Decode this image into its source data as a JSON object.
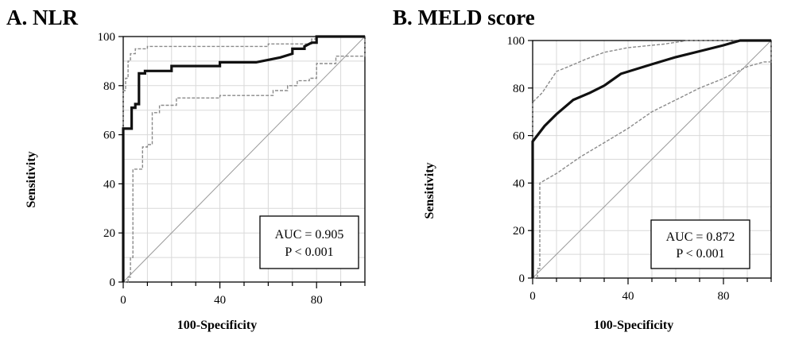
{
  "figure": {
    "background": "#ffffff",
    "colors": {
      "roc_curve": "#111111",
      "confidence_band": "#8a8a8a",
      "reference_line": "#9a9a9a",
      "grid": "#d9d9d9",
      "frame": "#000000"
    }
  },
  "chart_data": [
    {
      "type": "line",
      "panel_title": "A.   NLR",
      "xlabel": "100-Specificity",
      "ylabel": "Sensitivity",
      "xlim": [
        0,
        100
      ],
      "ylim": [
        0,
        100
      ],
      "xticks": [
        0,
        40,
        80
      ],
      "yticks": [
        0,
        20,
        40,
        60,
        80,
        100
      ],
      "grid": true,
      "annotation": {
        "lines": [
          "AUC = 0.905",
          "P < 0.001"
        ],
        "placement": "bottom-right"
      },
      "series": [
        {
          "role": "roc",
          "style": "solid-thick",
          "type": "step",
          "points": [
            [
              0,
              0
            ],
            [
              0,
              62.5
            ],
            [
              3.5,
              62.5
            ],
            [
              3.5,
              71
            ],
            [
              5,
              71
            ],
            [
              5,
              72.5
            ],
            [
              6.5,
              72.5
            ],
            [
              6.5,
              85
            ],
            [
              9,
              85
            ],
            [
              9,
              86
            ],
            [
              20,
              86
            ],
            [
              20,
              88
            ],
            [
              40,
              88
            ],
            [
              40,
              89.5
            ],
            [
              55,
              89.5
            ],
            [
              65,
              91.5
            ],
            [
              70,
              93
            ],
            [
              70,
              95
            ],
            [
              75,
              95
            ],
            [
              75,
              96
            ],
            [
              78,
              97.5
            ],
            [
              80,
              97.5
            ],
            [
              80,
              100
            ],
            [
              100,
              100
            ]
          ]
        },
        {
          "role": "upper_ci",
          "style": "dashed-gray",
          "type": "step",
          "points": [
            [
              0,
              0
            ],
            [
              0,
              78
            ],
            [
              1,
              78
            ],
            [
              1,
              83
            ],
            [
              2,
              83
            ],
            [
              2,
              90
            ],
            [
              3,
              90
            ],
            [
              3,
              93
            ],
            [
              5,
              93
            ],
            [
              5,
              95
            ],
            [
              10,
              95
            ],
            [
              10,
              96
            ],
            [
              60,
              96
            ],
            [
              60,
              97
            ],
            [
              78,
              97
            ],
            [
              78,
              99
            ],
            [
              80,
              99
            ],
            [
              80,
              100
            ],
            [
              100,
              100
            ]
          ]
        },
        {
          "role": "lower_ci",
          "style": "dashed-gray",
          "type": "step",
          "points": [
            [
              0,
              0
            ],
            [
              2,
              0
            ],
            [
              2,
              2
            ],
            [
              3,
              2
            ],
            [
              3,
              10
            ],
            [
              4,
              10
            ],
            [
              4,
              46
            ],
            [
              8,
              46
            ],
            [
              8,
              55
            ],
            [
              10,
              55
            ],
            [
              10,
              56
            ],
            [
              12,
              56
            ],
            [
              12,
              69
            ],
            [
              15,
              69
            ],
            [
              15,
              72
            ],
            [
              22,
              72
            ],
            [
              22,
              75
            ],
            [
              40,
              75
            ],
            [
              40,
              76
            ],
            [
              62,
              76
            ],
            [
              62,
              78
            ],
            [
              68,
              78
            ],
            [
              68,
              80
            ],
            [
              72,
              80
            ],
            [
              72,
              82
            ],
            [
              77,
              82
            ],
            [
              77,
              83
            ],
            [
              80,
              83
            ],
            [
              80,
              89
            ],
            [
              88,
              89
            ],
            [
              88,
              92
            ],
            [
              100,
              92
            ],
            [
              100,
              100
            ]
          ]
        },
        {
          "role": "reference",
          "style": "thin-gray",
          "type": "line",
          "points": [
            [
              0,
              0
            ],
            [
              100,
              100
            ]
          ]
        }
      ]
    },
    {
      "type": "line",
      "panel_title": "B. MELD score",
      "xlabel": "100-Specificity",
      "ylabel": "Sensitivity",
      "xlim": [
        0,
        100
      ],
      "ylim": [
        0,
        100
      ],
      "xticks": [
        0,
        40,
        80
      ],
      "yticks": [
        0,
        20,
        40,
        60,
        80,
        100
      ],
      "grid": true,
      "annotation": {
        "lines": [
          "AUC = 0.872",
          "P < 0.001"
        ],
        "placement": "bottom-right"
      },
      "series": [
        {
          "role": "roc",
          "style": "solid-thick",
          "type": "line",
          "points": [
            [
              0,
              0
            ],
            [
              0,
              57.5
            ],
            [
              5,
              64
            ],
            [
              10,
              69
            ],
            [
              17,
              75
            ],
            [
              24,
              78
            ],
            [
              30,
              81
            ],
            [
              37,
              86
            ],
            [
              50,
              90
            ],
            [
              60,
              93
            ],
            [
              72,
              96
            ],
            [
              80,
              98
            ],
            [
              87,
              100
            ],
            [
              100,
              100
            ]
          ]
        },
        {
          "role": "upper_ci",
          "style": "dashed-gray",
          "type": "line",
          "points": [
            [
              0,
              0
            ],
            [
              0,
              74
            ],
            [
              4,
              78
            ],
            [
              10,
              87
            ],
            [
              15,
              89
            ],
            [
              22,
              92
            ],
            [
              30,
              95
            ],
            [
              40,
              97
            ],
            [
              55,
              98.5
            ],
            [
              65,
              100
            ],
            [
              88,
              100
            ],
            [
              100,
              100
            ]
          ]
        },
        {
          "role": "lower_ci",
          "style": "dashed-gray",
          "type": "line",
          "points": [
            [
              0,
              0
            ],
            [
              2,
              0
            ],
            [
              2,
              4
            ],
            [
              3,
              4
            ],
            [
              3,
              40
            ],
            [
              10,
              44
            ],
            [
              20,
              51
            ],
            [
              30,
              57
            ],
            [
              40,
              63
            ],
            [
              50,
              70
            ],
            [
              60,
              75
            ],
            [
              70,
              80
            ],
            [
              80,
              84
            ],
            [
              90,
              89
            ],
            [
              97,
              91
            ],
            [
              100,
              91
            ],
            [
              100,
              100
            ]
          ]
        },
        {
          "role": "reference",
          "style": "thin-gray",
          "type": "line",
          "points": [
            [
              0,
              0
            ],
            [
              100,
              100
            ]
          ]
        }
      ]
    }
  ]
}
